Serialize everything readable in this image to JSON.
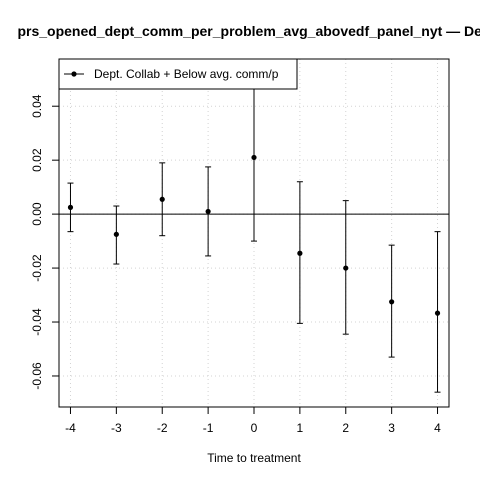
{
  "chart_data": {
    "type": "scatter",
    "title": "prs_opened_dept_comm_per_problem_avg_abovedf_panel_nyt — Dep",
    "xlabel": "Time to treatment",
    "ylabel": "",
    "x_ticks": [
      "-4",
      "-3",
      "-2",
      "-1",
      "0",
      "1",
      "2",
      "3",
      "4"
    ],
    "y_ticks": [
      "-0.06",
      "-0.04",
      "-0.02",
      "0.00",
      "0.02",
      "0.04"
    ],
    "xlim": [
      -4.25,
      4.25
    ],
    "ylim": [
      -0.0715,
      0.0575
    ],
    "grid": true,
    "legend_position": "top-left",
    "reference_line_y": 0,
    "series": [
      {
        "name": "Dept. Collab + Below avg. comm/p",
        "x": [
          -4,
          -3,
          -2,
          -1,
          0,
          1,
          2,
          3,
          4
        ],
        "y": [
          0.0025,
          -0.0075,
          0.0055,
          0.001,
          0.021,
          -0.0145,
          -0.02,
          -0.0325,
          -0.0367
        ],
        "ci_low": [
          -0.0065,
          -0.0185,
          -0.008,
          -0.0155,
          -0.01,
          -0.0405,
          -0.0445,
          -0.053,
          -0.066
        ],
        "ci_high": [
          0.0115,
          0.003,
          0.019,
          0.0175,
          0.052,
          0.012,
          0.005,
          -0.0115,
          -0.0065
        ]
      }
    ]
  }
}
